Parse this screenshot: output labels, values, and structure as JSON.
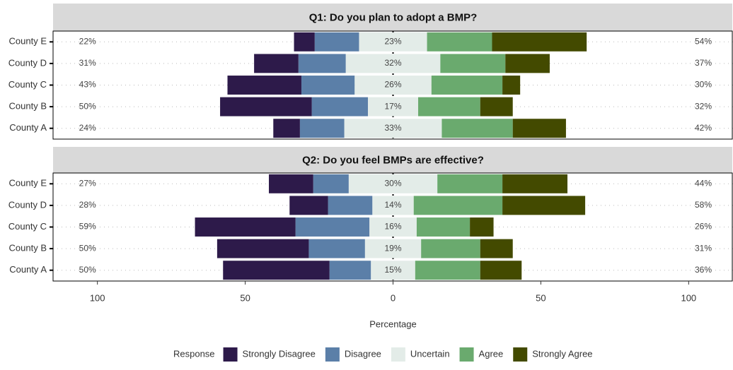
{
  "chart_data": {
    "type": "bar",
    "orientation": "horizontal",
    "diverging": true,
    "xlabel": "Percentage",
    "legend_title": "Response",
    "legend_position": "bottom",
    "xlim": [
      -115,
      115
    ],
    "xticks": [
      {
        "value": -100,
        "label": "100"
      },
      {
        "value": -50,
        "label": "50"
      },
      0,
      50,
      100
    ],
    "legend": [
      {
        "name": "Strongly Disagree",
        "color": "#2d1a4a"
      },
      {
        "name": "Disagree",
        "color": "#5b7fa8"
      },
      {
        "name": "Uncertain",
        "color": "#e3ece8"
      },
      {
        "name": "Agree",
        "color": "#6aaa6e"
      },
      {
        "name": "Strongly Agree",
        "color": "#434a00"
      }
    ],
    "panels": [
      {
        "title": "Q1: Do you plan to adopt a BMP?",
        "categories": [
          "County E",
          "County D",
          "County C",
          "County B",
          "County A"
        ],
        "series": [
          {
            "values": [
              7,
              15,
              25,
              31,
              9
            ]
          },
          {
            "values": [
              15,
              16,
              18,
              19,
              15
            ]
          },
          {
            "values": [
              23,
              32,
              26,
              17,
              33
            ]
          },
          {
            "values": [
              22,
              22,
              24,
              21,
              24
            ]
          },
          {
            "values": [
              32,
              15,
              6,
              11,
              18
            ]
          }
        ],
        "left_totals": {
          "values": [
            22,
            31,
            43,
            50,
            24
          ],
          "value_labels": [
            "22%",
            "31%",
            "43%",
            "50%",
            "24%"
          ]
        },
        "center_labels": {
          "values": [
            23,
            32,
            26,
            17,
            33
          ],
          "value_labels": [
            "23%",
            "32%",
            "26%",
            "17%",
            "33%"
          ]
        },
        "right_totals": {
          "values": [
            54,
            37,
            30,
            32,
            42
          ],
          "value_labels": [
            "54%",
            "37%",
            "30%",
            "32%",
            "42%"
          ]
        }
      },
      {
        "title": "Q2: Do you feel BMPs are effective?",
        "categories": [
          "County E",
          "County D",
          "County C",
          "County B",
          "County A"
        ],
        "series": [
          {
            "values": [
              15,
              13,
              34,
              31,
              36
            ]
          },
          {
            "values": [
              12,
              15,
              25,
              19,
              14
            ]
          },
          {
            "values": [
              30,
              14,
              16,
              19,
              15
            ]
          },
          {
            "values": [
              22,
              30,
              18,
              20,
              22
            ]
          },
          {
            "values": [
              22,
              28,
              8,
              11,
              14
            ]
          }
        ],
        "left_totals": {
          "values": [
            27,
            28,
            59,
            50,
            50
          ],
          "value_labels": [
            "27%",
            "28%",
            "59%",
            "50%",
            "50%"
          ]
        },
        "center_labels": {
          "values": [
            30,
            14,
            16,
            19,
            15
          ],
          "value_labels": [
            "30%",
            "14%",
            "16%",
            "19%",
            "15%"
          ]
        },
        "right_totals": {
          "values": [
            44,
            58,
            26,
            31,
            36
          ],
          "value_labels": [
            "44%",
            "58%",
            "26%",
            "31%",
            "36%"
          ]
        }
      }
    ]
  }
}
